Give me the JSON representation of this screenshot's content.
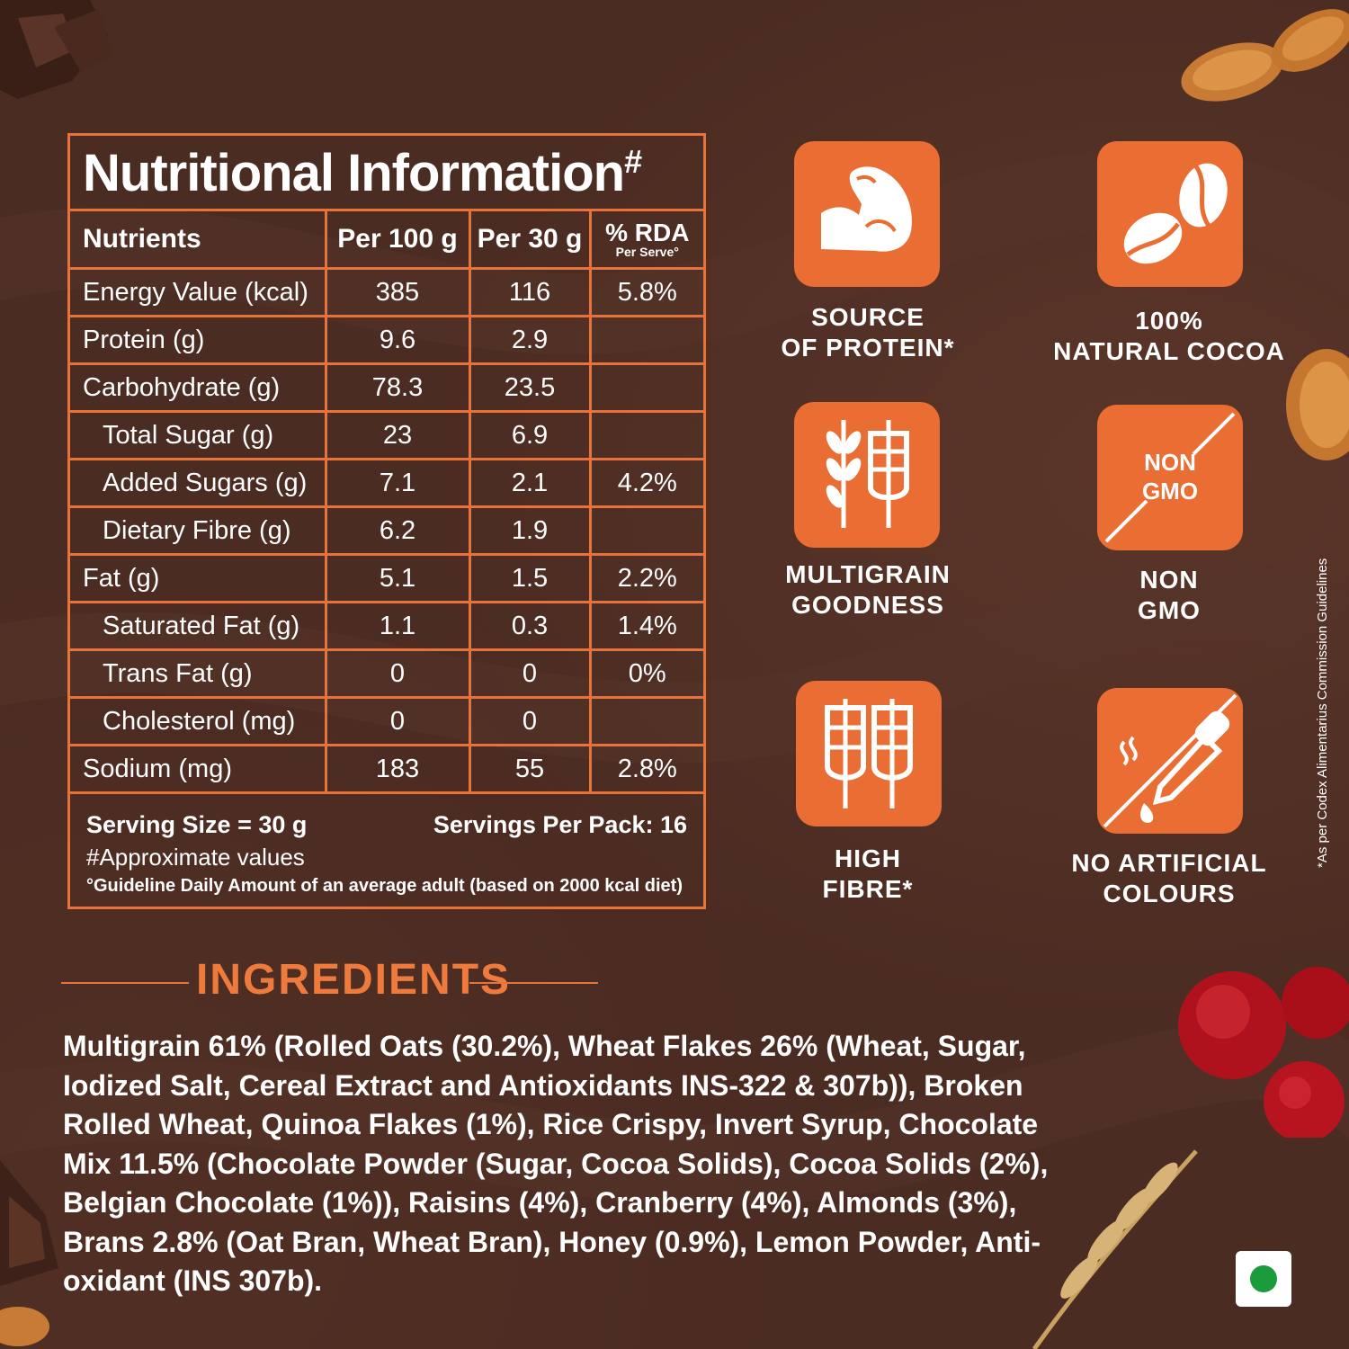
{
  "nutrition": {
    "title": "Nutritional Information",
    "title_mark": "#",
    "headers": {
      "nutrients": "Nutrients",
      "per100": "Per 100 g",
      "per30": "Per 30 g",
      "rda": "% RDA",
      "rda_sub": "Per Serve°"
    },
    "rows": [
      {
        "name": "Energy Value (kcal)",
        "per100": "385",
        "per30": "116",
        "rda": "5.8%"
      },
      {
        "name": "Protein (g)",
        "per100": "9.6",
        "per30": "2.9",
        "rda": ""
      },
      {
        "name": "Carbohydrate (g)",
        "per100": "78.3",
        "per30": "23.5",
        "rda": ""
      },
      {
        "name": "Total Sugar (g)",
        "per100": "23",
        "per30": "6.9",
        "rda": ""
      },
      {
        "name": "Added Sugars (g)",
        "per100": "7.1",
        "per30": "2.1",
        "rda": "4.2%"
      },
      {
        "name": "Dietary Fibre (g)",
        "per100": "6.2",
        "per30": "1.9",
        "rda": ""
      },
      {
        "name": "Fat (g)",
        "per100": "5.1",
        "per30": "1.5",
        "rda": "2.2%"
      },
      {
        "name": "Saturated Fat (g)",
        "per100": "1.1",
        "per30": "0.3",
        "rda": "1.4%"
      },
      {
        "name": "Trans Fat (g)",
        "per100": "0",
        "per30": "0",
        "rda": "0%"
      },
      {
        "name": "Cholesterol (mg)",
        "per100": "0",
        "per30": "0",
        "rda": ""
      },
      {
        "name": "Sodium (mg)",
        "per100": "183",
        "per30": "55",
        "rda": "2.8%"
      }
    ],
    "serving_size": "Serving Size = 30 g",
    "servings_per_pack": "Servings Per Pack: 16",
    "approx_note": "#Approximate values",
    "gda_note": "°Guideline Daily Amount of an average adult (based on 2000 kcal diet)"
  },
  "features": [
    {
      "icon": "flexed-arm-icon",
      "label_line1": "SOURCE",
      "label_line2": "OF PROTEIN*"
    },
    {
      "icon": "cocoa-beans-icon",
      "label_line1": "100%",
      "label_line2": "NATURAL COCOA"
    },
    {
      "icon": "multigrain-icon",
      "label_line1": "MULTIGRAIN",
      "label_line2": "GOODNESS"
    },
    {
      "icon": "non-gmo-icon",
      "badge_text_line1": "NON",
      "badge_text_line2": "GMO",
      "label_line1": "NON",
      "label_line2": "GMO"
    },
    {
      "icon": "wheat-stalks-icon",
      "label_line1": "HIGH",
      "label_line2": "FIBRE*"
    },
    {
      "icon": "dropper-icon",
      "label_line1": "NO ARTIFICIAL",
      "label_line2": "COLOURS"
    }
  ],
  "ingredients": {
    "title": "INGREDIENTS",
    "text": "Multigrain 61% (Rolled Oats (30.2%), Wheat Flakes 26% (Wheat, Sugar, Iodized Salt, Cereal Extract and Antioxidants INS-322 & 307b)), Broken Rolled Wheat, Quinoa Flakes (1%), Rice Crispy, Invert Syrup, Chocolate Mix 11.5% (Chocolate Powder (Sugar, Cocoa Solids), Cocoa Solids (2%), Belgian Chocolate (1%)), Raisins (4%), Cranberry (4%), Almonds (3%), Brans 2.8% (Oat Bran, Wheat Bran), Honey (0.9%), Lemon Powder, Anti-oxidant (INS 307b)."
  },
  "side_note": "*As per Codex Alimentarius Commission Guidelines",
  "colors": {
    "accent": "#ea6d33",
    "background": "#4b2c22",
    "veg": "#1a9b3c"
  }
}
